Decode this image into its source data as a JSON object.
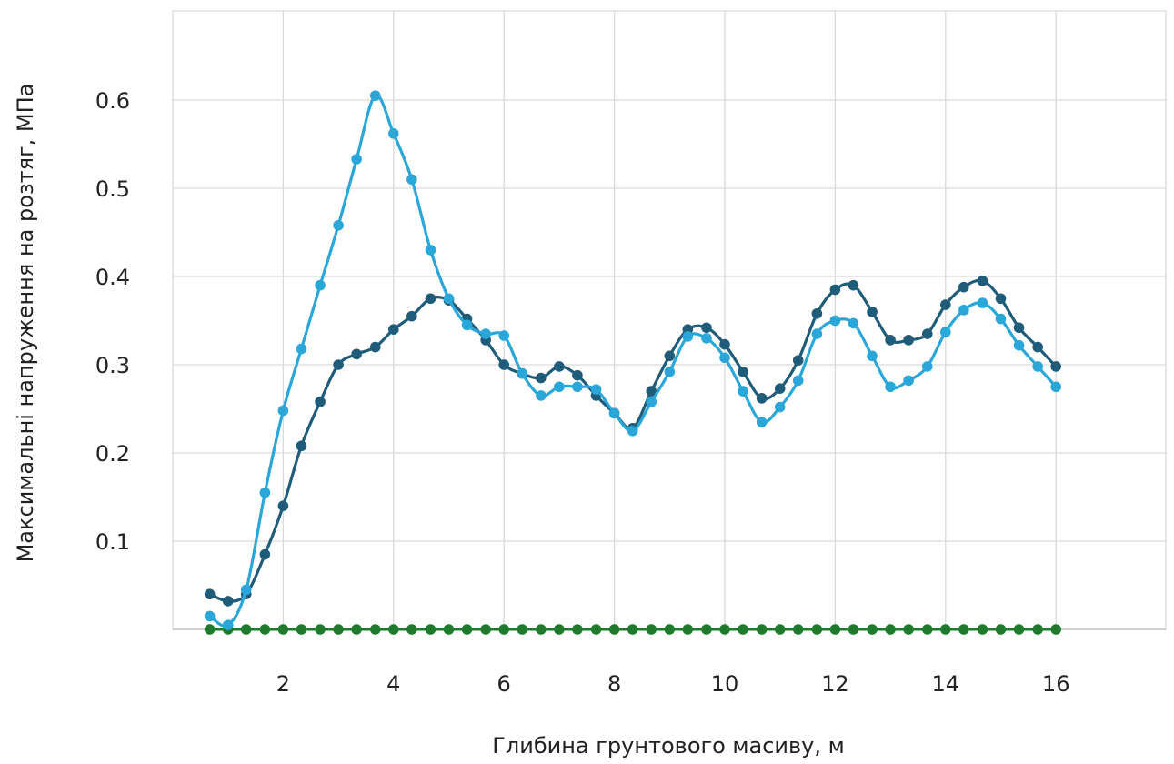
{
  "chart_data": {
    "type": "line",
    "title": "",
    "xlabel": "Глибина грунтового масиву, м",
    "ylabel": "Максимальні напруження на розтяг, МПа",
    "xlim": [
      0,
      17.8
    ],
    "ylim": [
      0,
      0.65
    ],
    "x_ticks": [
      2,
      4,
      6,
      8,
      10,
      12,
      14,
      16
    ],
    "x_tick_labels": [
      "2",
      "4",
      "6",
      "8",
      "10",
      "12",
      "14",
      "16"
    ],
    "y_ticks": [
      0.1,
      0.2,
      0.3,
      0.4,
      0.5,
      0.6
    ],
    "y_tick_labels": [
      "0.1",
      "0.2",
      "0.3",
      "0.4",
      "0.5",
      "0.6"
    ],
    "grid": true,
    "legend": "none",
    "colors": [
      "#1f5c7a",
      "#2aa7d8",
      "#1f7a2e"
    ],
    "x": [
      0.67,
      1.0,
      1.33,
      1.67,
      2.0,
      2.33,
      2.67,
      3.0,
      3.33,
      3.67,
      4.0,
      4.33,
      4.67,
      5.0,
      5.33,
      5.67,
      6.0,
      6.33,
      6.67,
      7.0,
      7.33,
      7.67,
      8.0,
      8.33,
      8.67,
      9.0,
      9.33,
      9.67,
      10.0,
      10.33,
      10.67,
      11.0,
      11.33,
      11.67,
      12.0,
      12.33,
      12.67,
      13.0,
      13.33,
      13.67,
      14.0,
      14.33,
      14.67,
      15.0,
      15.33,
      15.67,
      16.0
    ],
    "series": [
      {
        "values": [
          0.04,
          0.032,
          0.04,
          0.085,
          0.14,
          0.208,
          0.258,
          0.3,
          0.312,
          0.32,
          0.34,
          0.355,
          0.375,
          0.373,
          0.352,
          0.328,
          0.3,
          0.29,
          0.285,
          0.298,
          0.288,
          0.265,
          0.245,
          0.228,
          0.27,
          0.31,
          0.34,
          0.342,
          0.323,
          0.292,
          0.262,
          0.273,
          0.305,
          0.358,
          0.385,
          0.39,
          0.36,
          0.328,
          0.328,
          0.335,
          0.368,
          0.388,
          0.395,
          0.375,
          0.342,
          0.32,
          0.298
        ]
      },
      {
        "values": [
          0.015,
          0.005,
          0.045,
          0.155,
          0.248,
          0.318,
          0.39,
          0.458,
          0.533,
          0.605,
          0.562,
          0.51,
          0.43,
          0.375,
          0.345,
          0.335,
          0.333,
          0.29,
          0.265,
          0.275,
          0.275,
          0.272,
          0.245,
          0.225,
          0.258,
          0.292,
          0.332,
          0.33,
          0.308,
          0.27,
          0.235,
          0.252,
          0.282,
          0.335,
          0.35,
          0.347,
          0.31,
          0.275,
          0.282,
          0.298,
          0.337,
          0.362,
          0.37,
          0.352,
          0.322,
          0.298,
          0.275
        ]
      },
      {
        "values": [
          0,
          0,
          0,
          0,
          0,
          0,
          0,
          0,
          0,
          0,
          0,
          0,
          0,
          0,
          0,
          0,
          0,
          0,
          0,
          0,
          0,
          0,
          0,
          0,
          0,
          0,
          0,
          0,
          0,
          0,
          0,
          0,
          0,
          0,
          0,
          0,
          0,
          0,
          0,
          0,
          0,
          0,
          0,
          0,
          0,
          0,
          0
        ]
      }
    ]
  }
}
